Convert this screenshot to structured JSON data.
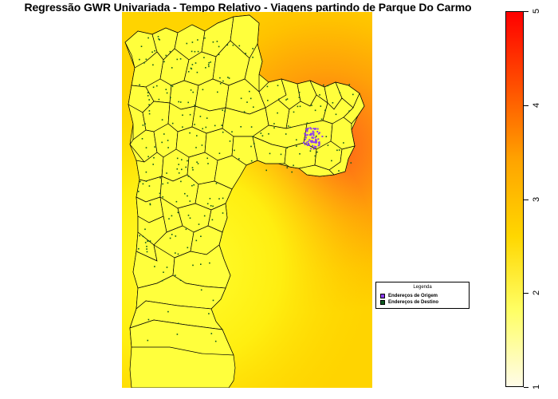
{
  "title": "Regressão GWR Univariada - Tempo Relativo - Viagens partindo de Parque Do Carmo",
  "legend": {
    "title": "Legenda",
    "items": [
      {
        "label": "Endereços de Origem",
        "color": "#8b3df0"
      },
      {
        "label": "Endereços de Destino",
        "color": "#0d5b1f"
      }
    ]
  },
  "colorbar": {
    "min": 1,
    "max": 5,
    "ticks": [
      "1",
      "2",
      "3",
      "4",
      "5"
    ],
    "colors": [
      "#fffbe8",
      "#ffff66",
      "#ffd700",
      "#ffa500",
      "#ff5000",
      "#ff0000"
    ]
  },
  "map": {
    "background_colors": [
      "#ffd800",
      "#ffb000",
      "#ff8a10",
      "#ff6a20"
    ],
    "polygon_fill": "#ffff3a",
    "origin_color": "#8b3df0",
    "destination_color": "#0d5b1f"
  }
}
